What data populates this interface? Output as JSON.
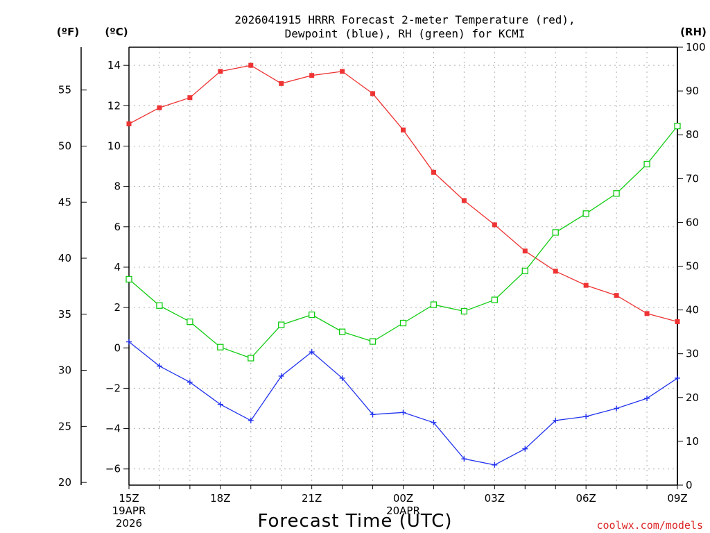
{
  "title": {
    "line1": "2026041915 HRRR Forecast 2-meter Temperature (red),",
    "line2": "Dewpoint (blue), RH (green) for KCMI"
  },
  "units": {
    "fahrenheit": "(ºF)",
    "celsius": "(ºC)",
    "rh": "(RH)"
  },
  "xlabel": "Forecast Time (UTC)",
  "credit": "coolwx.com/models",
  "colors": {
    "temperature": "#ee3333",
    "dewpoint": "#2233ee",
    "rh": "#11cc11"
  },
  "chart_data": {
    "type": "line",
    "title": "2026041915 HRRR Forecast 2-meter Temperature (red), Dewpoint (blue), RH (green) for KCMI",
    "xlabel": "Forecast Time (UTC)",
    "x": [
      "15Z",
      "16Z",
      "17Z",
      "18Z",
      "19Z",
      "20Z",
      "21Z",
      "22Z",
      "23Z",
      "00Z",
      "01Z",
      "02Z",
      "03Z",
      "04Z",
      "05Z",
      "06Z",
      "07Z",
      "08Z",
      "09Z"
    ],
    "x_ticks": [
      {
        "index": 0,
        "label": "15Z",
        "sub1": "19APR",
        "sub2": "2026"
      },
      {
        "index": 3,
        "label": "18Z"
      },
      {
        "index": 6,
        "label": "21Z"
      },
      {
        "index": 9,
        "label": "00Z",
        "sub1": "20APR"
      },
      {
        "index": 12,
        "label": "03Z"
      },
      {
        "index": 15,
        "label": "06Z"
      },
      {
        "index": 18,
        "label": "09Z"
      }
    ],
    "ylim_celsius": [
      -6.8,
      14.9
    ],
    "ylim_fahrenheit": [
      19.76,
      58.82
    ],
    "ylim_rh": [
      0,
      100
    ],
    "celsius_ticks": [
      -6,
      -4,
      -2,
      0,
      2,
      4,
      6,
      8,
      10,
      12,
      14
    ],
    "fahrenheit_ticks": [
      20,
      25,
      30,
      35,
      40,
      45,
      50,
      55
    ],
    "rh_ticks": [
      0,
      10,
      20,
      30,
      40,
      50,
      60,
      70,
      80,
      90,
      100
    ],
    "grid": true,
    "series": [
      {
        "name": "Temperature",
        "axis": "celsius",
        "marker": "filled-square",
        "color": "#ee3333",
        "values": [
          11.1,
          11.9,
          12.4,
          13.7,
          14.0,
          13.1,
          13.5,
          13.7,
          12.6,
          10.8,
          8.7,
          7.3,
          6.1,
          4.8,
          3.8,
          3.1,
          2.6,
          1.7,
          1.3
        ]
      },
      {
        "name": "Dewpoint",
        "axis": "celsius",
        "marker": "plus",
        "color": "#2233ee",
        "values": [
          0.3,
          -0.9,
          -1.7,
          -2.8,
          -3.6,
          -1.4,
          -0.2,
          -1.5,
          -3.3,
          -3.2,
          -3.7,
          -5.5,
          -5.8,
          -5.0,
          -3.6,
          -3.4,
          -3.0,
          -2.5,
          -1.5
        ]
      },
      {
        "name": "RH",
        "axis": "rh",
        "marker": "open-square",
        "color": "#11cc11",
        "values": [
          47,
          41,
          37.3,
          31.5,
          29,
          36.6,
          38.9,
          35,
          32.8,
          37,
          41.2,
          39.7,
          42.3,
          48.9,
          57.7,
          62,
          66.6,
          73.3,
          82
        ]
      }
    ]
  }
}
